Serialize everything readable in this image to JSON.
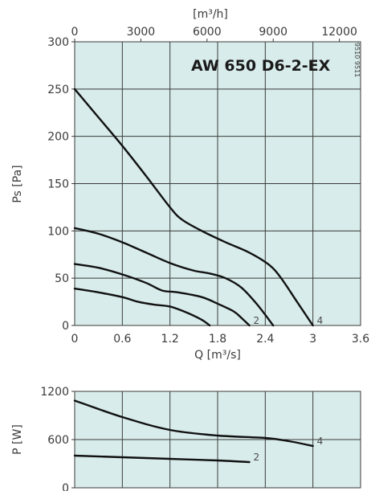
{
  "doc_code": "9510  9511",
  "colors": {
    "plot_bg": "#d8eceb",
    "grid": "#3a3a3a",
    "curve": "#111111",
    "text": "#3a3a3a"
  },
  "chart_data": [
    {
      "type": "line",
      "title": "AW 650 D6-2-EX",
      "xlabel": "Q [m³/s]",
      "ylabel": "Ps [Pa]",
      "x2label": "[m³/h]",
      "xlim": [
        0,
        3.6
      ],
      "ylim": [
        0,
        300
      ],
      "x2lim": [
        0,
        12960
      ],
      "xticks": [
        "0",
        "0.6",
        "1.2",
        "1.8",
        "2.4",
        "3",
        "3.6"
      ],
      "yticks": [
        "0",
        "50",
        "100",
        "150",
        "200",
        "250",
        "300"
      ],
      "x2ticks": [
        "0",
        "3000",
        "6000",
        "9000",
        "12000"
      ],
      "grid": true,
      "series": [
        {
          "name": "4",
          "x": [
            0,
            0.3,
            0.6,
            0.9,
            1.2,
            1.35,
            1.6,
            1.9,
            2.2,
            2.45,
            2.6,
            2.8,
            3.0
          ],
          "y": [
            250,
            220,
            190,
            158,
            125,
            112,
            100,
            88,
            77,
            64,
            50,
            25,
            0
          ]
        },
        {
          "name": "",
          "x": [
            0,
            0.3,
            0.6,
            0.9,
            1.2,
            1.5,
            1.7,
            1.9,
            2.1,
            2.3,
            2.5
          ],
          "y": [
            103,
            97,
            88,
            77,
            66,
            58,
            55,
            50,
            40,
            22,
            0
          ]
        },
        {
          "name": "2",
          "x": [
            0,
            0.3,
            0.6,
            0.9,
            1.1,
            1.3,
            1.6,
            1.8,
            2.0,
            2.1,
            2.2
          ],
          "y": [
            65,
            61,
            54,
            45,
            37,
            35,
            30,
            23,
            15,
            8,
            0
          ]
        },
        {
          "name": "",
          "x": [
            0,
            0.3,
            0.6,
            0.8,
            1.0,
            1.2,
            1.4,
            1.6,
            1.7
          ],
          "y": [
            39,
            35,
            30,
            25,
            22,
            20,
            14,
            6,
            0
          ]
        }
      ]
    },
    {
      "type": "line",
      "xlabel": "",
      "ylabel": "P [W]",
      "xlim": [
        0,
        3.6
      ],
      "ylim": [
        0,
        1200
      ],
      "yticks": [
        "0",
        "600",
        "1200"
      ],
      "grid": true,
      "series": [
        {
          "name": "4",
          "x": [
            0,
            0.6,
            1.2,
            1.8,
            2.4,
            2.7,
            3.0
          ],
          "y": [
            1085,
            880,
            720,
            650,
            620,
            580,
            520
          ]
        },
        {
          "name": "2",
          "x": [
            0,
            0.6,
            1.2,
            1.8,
            2.2
          ],
          "y": [
            400,
            380,
            360,
            340,
            320
          ]
        }
      ]
    }
  ]
}
